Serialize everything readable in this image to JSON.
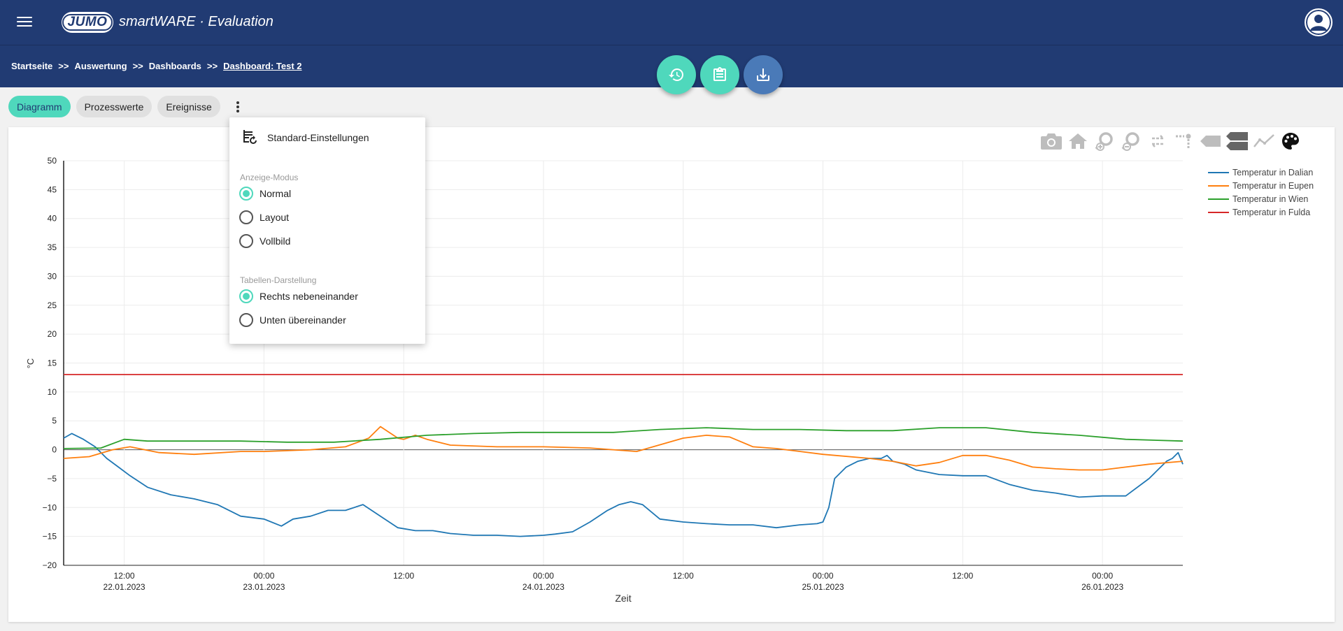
{
  "header": {
    "logo": "JUMO",
    "product": "smartWARE · Evaluation"
  },
  "breadcrumb": {
    "items": [
      "Startseite",
      "Auswertung",
      "Dashboards"
    ],
    "separator": ">>",
    "current": "Dashboard: Test 2"
  },
  "tabs": {
    "diagram": "Diagramm",
    "process_values": "Prozesswerte",
    "events": "Ereignisse"
  },
  "menu": {
    "standard": "Standard-Einstellungen",
    "display_mode_title": "Anzeige-Modus",
    "mode_normal": "Normal",
    "mode_layout": "Layout",
    "mode_fullscreen": "Vollbild",
    "table_title": "Tabellen-Darstellung",
    "table_right": "Rechts nebeneinander",
    "table_below": "Unten übereinander"
  },
  "colors": {
    "accent": "#4fd8bc",
    "header": "#213b73",
    "dalian": "#1f77b4",
    "eupen": "#ff7f0e",
    "wien": "#2ca02c",
    "fulda": "#d62728"
  },
  "chart_data": {
    "type": "line",
    "xlabel": "Zeit",
    "ylabel": "°C",
    "ylim": [
      -20,
      50
    ],
    "yticks": [
      50,
      45,
      40,
      35,
      30,
      25,
      20,
      15,
      10,
      5,
      0,
      -5,
      -10,
      -15,
      -20
    ],
    "xticks": [
      {
        "time": "12:00",
        "date": "22.01.2023"
      },
      {
        "time": "00:00",
        "date": "23.01.2023"
      },
      {
        "time": "12:00",
        "date": ""
      },
      {
        "time": "00:00",
        "date": "24.01.2023"
      },
      {
        "time": "12:00",
        "date": ""
      },
      {
        "time": "00:00",
        "date": "25.01.2023"
      },
      {
        "time": "12:00",
        "date": ""
      },
      {
        "time": "00:00",
        "date": "26.01.2023"
      }
    ],
    "x_unit": "hours relative to 22.01.2023 00:00",
    "xlim": [
      6.8,
      102.9
    ],
    "grid": true,
    "legend": "top-right",
    "series": [
      {
        "name": "Temperatur in Dalian",
        "color": "#1f77b4",
        "x": [
          6.8,
          7.5,
          8.5,
          9.5,
          10.5,
          11.5,
          12.5,
          14,
          16,
          18,
          20,
          22,
          24,
          25.5,
          26.5,
          28,
          29.5,
          31,
          32.5,
          34,
          35.5,
          37,
          38.5,
          40,
          42,
          44,
          46,
          48,
          49,
          50.5,
          52,
          53.5,
          54.5,
          55.5,
          56.5,
          58,
          60,
          62,
          64,
          66,
          68,
          70,
          71.5,
          72,
          72.5,
          73,
          74,
          75,
          76,
          77,
          77.5,
          78,
          79,
          80,
          82,
          84,
          86,
          88,
          90,
          92,
          94,
          96,
          98,
          100,
          101.5,
          102,
          102.5,
          102.9
        ],
        "y": [
          2,
          2.8,
          1.8,
          0.5,
          -1.5,
          -3,
          -4.5,
          -6.5,
          -7.8,
          -8.5,
          -9.5,
          -11.5,
          -12,
          -13.2,
          -12,
          -11.5,
          -10.5,
          -10.5,
          -9.5,
          -11.5,
          -13.5,
          -14,
          -14,
          -14.5,
          -14.8,
          -14.8,
          -15,
          -14.8,
          -14.6,
          -14.2,
          -12.5,
          -10.5,
          -9.5,
          -9,
          -9.5,
          -12,
          -12.5,
          -12.8,
          -13,
          -13,
          -13.5,
          -13,
          -12.8,
          -12.5,
          -10,
          -5,
          -3,
          -2,
          -1.5,
          -1.5,
          -1,
          -2,
          -2.5,
          -3.5,
          -4.3,
          -4.5,
          -4.5,
          -6,
          -7,
          -7.5,
          -8.2,
          -8,
          -8,
          -5,
          -2,
          -1.5,
          -0.5,
          -2.5
        ]
      },
      {
        "name": "Temperatur in Eupen",
        "color": "#ff7f0e",
        "x": [
          6.8,
          9,
          11,
          12.5,
          15,
          18,
          22,
          24,
          28,
          31,
          33,
          34,
          35.5,
          36,
          37,
          38,
          40,
          44,
          48,
          52,
          56,
          60,
          62,
          64,
          66,
          68,
          72,
          76,
          78,
          80,
          82,
          84,
          86,
          88,
          90,
          92,
          94,
          96,
          98,
          100,
          102.9
        ],
        "y": [
          -1.5,
          -1.2,
          0,
          0.5,
          -0.5,
          -0.8,
          -0.3,
          -0.3,
          0,
          0.5,
          2,
          4,
          2,
          1.8,
          2.5,
          1.8,
          0.8,
          0.5,
          0.5,
          0.3,
          -0.3,
          2,
          2.5,
          2.2,
          0.5,
          0.2,
          -0.8,
          -1.5,
          -2,
          -2.8,
          -2.2,
          -1,
          -1,
          -1.8,
          -3,
          -3.3,
          -3.5,
          -3.5,
          -3,
          -2.5,
          -2
        ]
      },
      {
        "name": "Temperatur in Wien",
        "color": "#2ca02c",
        "x": [
          6.8,
          10,
          12,
          14,
          18,
          22,
          26,
          30,
          34,
          38,
          42,
          46,
          50,
          54,
          58,
          62,
          66,
          70,
          74,
          78,
          82,
          86,
          90,
          94,
          98,
          102.9
        ],
        "y": [
          0.2,
          0.3,
          1.8,
          1.5,
          1.5,
          1.5,
          1.3,
          1.3,
          1.8,
          2.5,
          2.8,
          3,
          3,
          3,
          3.5,
          3.8,
          3.5,
          3.5,
          3.3,
          3.3,
          3.8,
          3.8,
          3,
          2.5,
          1.8,
          1.5
        ]
      },
      {
        "name": "Temperatur in Fulda",
        "color": "#d62728",
        "x": [
          6.8,
          102.9
        ],
        "y": [
          13,
          13
        ]
      }
    ]
  }
}
